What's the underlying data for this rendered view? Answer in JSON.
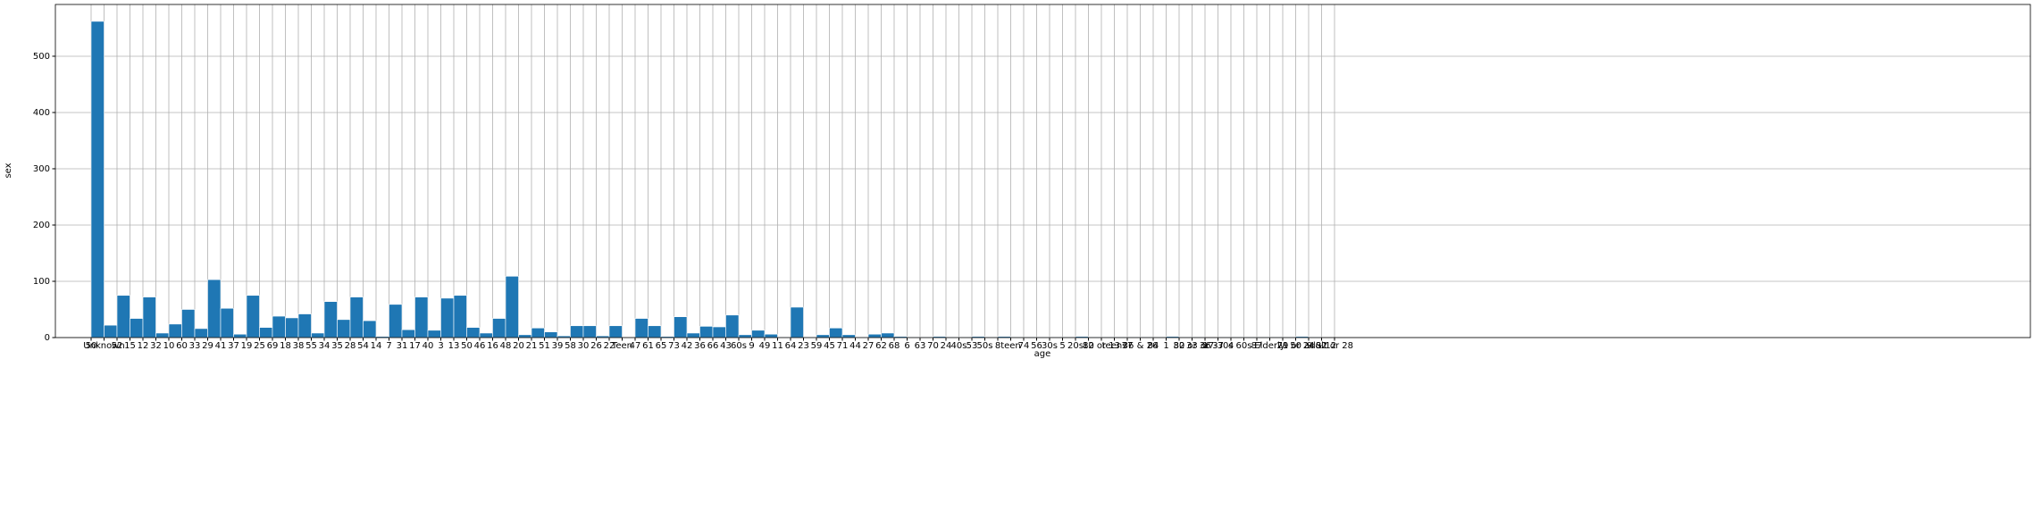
{
  "chart_data": {
    "type": "bar",
    "x_label": "age",
    "y_label": "sex",
    "categories": [
      "50",
      "Unknown",
      "52",
      "15",
      "12",
      "32",
      "10",
      "60",
      "33",
      "29",
      "41",
      "37",
      "19",
      "25",
      "69",
      "18",
      "38",
      "55",
      "34",
      "35",
      "28",
      "54",
      "14",
      "7",
      "31",
      "17",
      "40",
      "3",
      "13",
      "50",
      "46",
      "16",
      "48",
      "20",
      "21",
      "51",
      "39",
      "58",
      "30",
      "26",
      "22",
      "Teen",
      "47",
      "61",
      "65",
      "73",
      "42",
      "36",
      "66",
      "43",
      "60s",
      "9",
      "49",
      "11",
      "64",
      "23",
      "59",
      "45",
      "71",
      "44",
      "27",
      "62",
      "68",
      "6",
      "63",
      "70",
      "24",
      "40s",
      "53",
      "50s",
      "8",
      "teen",
      "74",
      "56",
      "30s",
      "5",
      "20s",
      "80",
      "12 or 13",
      "teens",
      "77",
      "36 & 26",
      "84",
      "1",
      "82",
      "30 or 36",
      "33 or 37",
      "17-30s",
      "4",
      "60s ",
      "87",
      "Elderly",
      "79",
      "21 or 24",
      "50 adult",
      "9 & 12",
      "32 or 28"
    ],
    "values": [
      562,
      22,
      75,
      34,
      72,
      8,
      24,
      50,
      16,
      103,
      52,
      6,
      75,
      18,
      38,
      35,
      42,
      8,
      64,
      32,
      72,
      30,
      2,
      59,
      14,
      72,
      13,
      70,
      75,
      18,
      8,
      34,
      109,
      5,
      17,
      10,
      3,
      21,
      21,
      3,
      21,
      0,
      34,
      21,
      2,
      37,
      8,
      20,
      19,
      40,
      5,
      13,
      6,
      1,
      54,
      1,
      5,
      17,
      5,
      1,
      6,
      8,
      2,
      1,
      1,
      2,
      1,
      1,
      2,
      1,
      2,
      1,
      1,
      1,
      1,
      1,
      2,
      1,
      1,
      1,
      1,
      1,
      1,
      2,
      1,
      1,
      0,
      1,
      1,
      1,
      1,
      1,
      1,
      2,
      1,
      0,
      0
    ],
    "color": "#1f77b4",
    "ylim": [
      0,
      592
    ],
    "yticks": [
      0,
      100,
      200,
      300,
      400,
      500
    ],
    "grid": true
  }
}
